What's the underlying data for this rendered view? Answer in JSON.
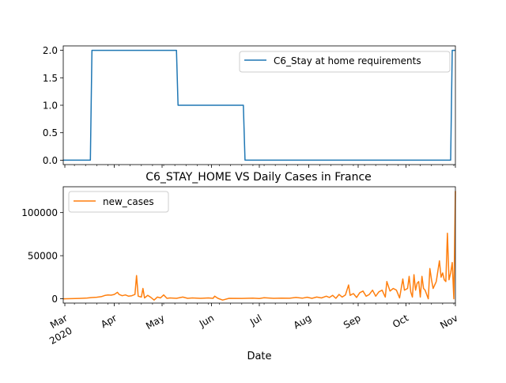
{
  "figure": {
    "title": "C6_STAY_HOME VS Daily Cases in France",
    "xlabel": "Date"
  },
  "chart_data": [
    {
      "type": "line",
      "title": "",
      "xlabel": "",
      "ylabel": "",
      "x_range": [
        "2020-02-29",
        "2020-11-01"
      ],
      "ylim": [
        -0.08,
        2.08
      ],
      "yticks": [
        0.0,
        0.5,
        1.0,
        1.5,
        2.0
      ],
      "ytick_labels": [
        "0.0",
        "0.5",
        "1.0",
        "1.5",
        "2.0"
      ],
      "legend_position": "upper right",
      "grid": false,
      "series": [
        {
          "name": "C6_Stay at home requirements",
          "color": "#1f77b4",
          "points": [
            [
              "2020-02-29",
              0
            ],
            [
              "2020-03-17",
              0
            ],
            [
              "2020-03-18",
              2
            ],
            [
              "2020-05-10",
              2
            ],
            [
              "2020-05-11",
              1
            ],
            [
              "2020-06-21",
              1
            ],
            [
              "2020-06-22",
              0
            ],
            [
              "2020-10-29",
              0
            ],
            [
              "2020-10-30",
              2
            ],
            [
              "2020-11-01",
              2
            ]
          ]
        }
      ]
    },
    {
      "type": "line",
      "title": "",
      "xlabel": "Date",
      "ylabel": "",
      "x_range": [
        "2020-02-29",
        "2020-11-01"
      ],
      "ylim": [
        -5000,
        130000
      ],
      "yticks": [
        0,
        50000,
        100000
      ],
      "ytick_labels": [
        "0",
        "50000",
        "100000"
      ],
      "xticks": [
        {
          "date": "2020-03-01",
          "label": "Mar",
          "sublabel": "2020"
        },
        {
          "date": "2020-04-01",
          "label": "Apr"
        },
        {
          "date": "2020-05-01",
          "label": "May"
        },
        {
          "date": "2020-06-01",
          "label": "Jun"
        },
        {
          "date": "2020-07-01",
          "label": "Jul"
        },
        {
          "date": "2020-08-01",
          "label": "Aug"
        },
        {
          "date": "2020-09-01",
          "label": "Sep"
        },
        {
          "date": "2020-10-01",
          "label": "Oct"
        },
        {
          "date": "2020-11-01",
          "label": "Nov"
        }
      ],
      "legend_position": "upper left",
      "grid": false,
      "series": [
        {
          "name": "new_cases",
          "color": "#ff7f0e",
          "points": [
            [
              "2020-02-29",
              0
            ],
            [
              "2020-03-05",
              100
            ],
            [
              "2020-03-10",
              400
            ],
            [
              "2020-03-15",
              900
            ],
            [
              "2020-03-18",
              1400
            ],
            [
              "2020-03-21",
              1800
            ],
            [
              "2020-03-24",
              2500
            ],
            [
              "2020-03-26",
              3800
            ],
            [
              "2020-03-28",
              4500
            ],
            [
              "2020-03-30",
              4200
            ],
            [
              "2020-04-01",
              5000
            ],
            [
              "2020-04-03",
              7500
            ],
            [
              "2020-04-04",
              5000
            ],
            [
              "2020-04-06",
              3500
            ],
            [
              "2020-04-08",
              4500
            ],
            [
              "2020-04-10",
              3000
            ],
            [
              "2020-04-12",
              3500
            ],
            [
              "2020-04-14",
              5000
            ],
            [
              "2020-04-15",
              27000
            ],
            [
              "2020-04-16",
              3000
            ],
            [
              "2020-04-18",
              2000
            ],
            [
              "2020-04-19",
              12000
            ],
            [
              "2020-04-20",
              1000
            ],
            [
              "2020-04-22",
              4000
            ],
            [
              "2020-04-24",
              1500
            ],
            [
              "2020-04-26",
              -1500
            ],
            [
              "2020-04-28",
              2000
            ],
            [
              "2020-04-30",
              1000
            ],
            [
              "2020-05-02",
              4500
            ],
            [
              "2020-05-04",
              500
            ],
            [
              "2020-05-06",
              1000
            ],
            [
              "2020-05-10",
              500
            ],
            [
              "2020-05-14",
              2000
            ],
            [
              "2020-05-17",
              500
            ],
            [
              "2020-05-20",
              1000
            ],
            [
              "2020-05-25",
              500
            ],
            [
              "2020-05-30",
              1000
            ],
            [
              "2020-06-02",
              500
            ],
            [
              "2020-06-03",
              3000
            ],
            [
              "2020-06-05",
              500
            ],
            [
              "2020-06-08",
              -1500
            ],
            [
              "2020-06-12",
              500
            ],
            [
              "2020-06-20",
              400
            ],
            [
              "2020-06-27",
              800
            ],
            [
              "2020-07-01",
              300
            ],
            [
              "2020-07-04",
              1200
            ],
            [
              "2020-07-10",
              500
            ],
            [
              "2020-07-15",
              800
            ],
            [
              "2020-07-20",
              600
            ],
            [
              "2020-07-24",
              1500
            ],
            [
              "2020-07-28",
              700
            ],
            [
              "2020-07-31",
              1800
            ],
            [
              "2020-08-03",
              500
            ],
            [
              "2020-08-06",
              2000
            ],
            [
              "2020-08-09",
              1000
            ],
            [
              "2020-08-12",
              3000
            ],
            [
              "2020-08-14",
              1500
            ],
            [
              "2020-08-16",
              4000
            ],
            [
              "2020-08-18",
              500
            ],
            [
              "2020-08-20",
              5000
            ],
            [
              "2020-08-22",
              2000
            ],
            [
              "2020-08-24",
              4500
            ],
            [
              "2020-08-26",
              16000
            ],
            [
              "2020-08-27",
              4000
            ],
            [
              "2020-08-29",
              6000
            ],
            [
              "2020-08-31",
              1500
            ],
            [
              "2020-09-02",
              7000
            ],
            [
              "2020-09-04",
              9000
            ],
            [
              "2020-09-06",
              3000
            ],
            [
              "2020-09-08",
              5000
            ],
            [
              "2020-09-10",
              10000
            ],
            [
              "2020-09-12",
              3000
            ],
            [
              "2020-09-14",
              8000
            ],
            [
              "2020-09-16",
              10000
            ],
            [
              "2020-09-18",
              2000
            ],
            [
              "2020-09-19",
              20000
            ],
            [
              "2020-09-21",
              9000
            ],
            [
              "2020-09-23",
              12000
            ],
            [
              "2020-09-25",
              10000
            ],
            [
              "2020-09-27",
              1000
            ],
            [
              "2020-09-29",
              23000
            ],
            [
              "2020-09-30",
              10000
            ],
            [
              "2020-10-02",
              12000
            ],
            [
              "2020-10-03",
              26000
            ],
            [
              "2020-10-04",
              8000
            ],
            [
              "2020-10-05",
              2000
            ],
            [
              "2020-10-06",
              28000
            ],
            [
              "2020-10-07",
              10000
            ],
            [
              "2020-10-08",
              18000
            ],
            [
              "2020-10-09",
              20000
            ],
            [
              "2020-10-10",
              2000
            ],
            [
              "2020-10-11",
              26000
            ],
            [
              "2020-10-12",
              12000
            ],
            [
              "2020-10-13",
              10000
            ],
            [
              "2020-10-15",
              0
            ],
            [
              "2020-10-16",
              35000
            ],
            [
              "2020-10-17",
              22000
            ],
            [
              "2020-10-18",
              12000
            ],
            [
              "2020-10-20",
              20000
            ],
            [
              "2020-10-22",
              44000
            ],
            [
              "2020-10-23",
              25000
            ],
            [
              "2020-10-24",
              30000
            ],
            [
              "2020-10-25",
              22000
            ],
            [
              "2020-10-26",
              20000
            ],
            [
              "2020-10-27",
              76000
            ],
            [
              "2020-10-28",
              22000
            ],
            [
              "2020-10-29",
              30000
            ],
            [
              "2020-10-30",
              42000
            ],
            [
              "2020-10-31",
              0
            ],
            [
              "2020-11-01",
              125000
            ]
          ]
        }
      ]
    }
  ]
}
